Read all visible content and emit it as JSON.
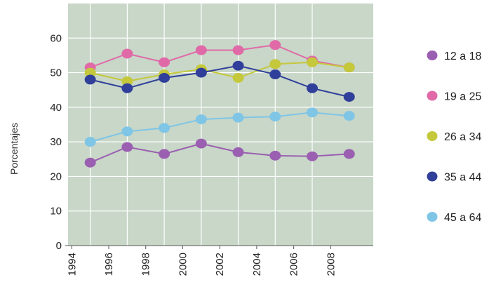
{
  "chart_data": {
    "type": "line",
    "title": "",
    "xlabel": "",
    "ylabel": "Porcentajes",
    "ylim": [
      0,
      70
    ],
    "yticks": [
      0,
      10,
      20,
      30,
      40,
      50,
      60
    ],
    "x_ticks": [
      "1994",
      "1996",
      "1998",
      "2000",
      "2002",
      "2004",
      "2006",
      "2008"
    ],
    "x": [
      1995,
      1997,
      1999,
      2001,
      2003,
      2005,
      2007,
      2009
    ],
    "grid": true,
    "legend_position": "right",
    "plot_background": "#c8d7c8",
    "grid_color": "#ffffff",
    "series": [
      {
        "name": "12 a 18",
        "color": "#9a5fb1",
        "values": [
          24,
          28.5,
          26.5,
          29.5,
          27,
          26,
          25.8,
          26.5
        ]
      },
      {
        "name": "19 a 25",
        "color": "#e06aa8",
        "values": [
          51.5,
          55.5,
          53,
          56.5,
          56.5,
          58,
          53.5,
          51.5
        ]
      },
      {
        "name": "26 a 34",
        "color": "#c4c83a",
        "values": [
          50,
          47.5,
          49.5,
          51,
          48.5,
          52.5,
          53,
          51.5
        ]
      },
      {
        "name": "35 a 44",
        "color": "#2f3f9a",
        "values": [
          48,
          45.5,
          48.5,
          50,
          52,
          49.5,
          45.5,
          43
        ]
      },
      {
        "name": "45 a 64",
        "color": "#7fc5e6",
        "values": [
          30,
          33,
          34,
          36.5,
          37,
          37.3,
          38.5,
          37.5
        ]
      }
    ]
  }
}
